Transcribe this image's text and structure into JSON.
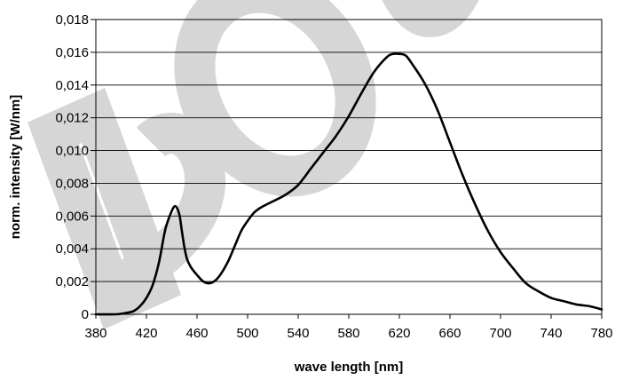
{
  "chart_data": {
    "type": "line",
    "title": "",
    "xlabel": "wave length [nm]",
    "ylabel": "norm. intensity [W/nm]",
    "xlim": [
      380,
      780
    ],
    "ylim": [
      0,
      0.018
    ],
    "x_ticks": [
      380,
      420,
      460,
      500,
      540,
      580,
      620,
      660,
      700,
      740,
      780
    ],
    "x_tick_labels": [
      "380",
      "420",
      "460",
      "500",
      "540",
      "580",
      "620",
      "660",
      "700",
      "740",
      "780"
    ],
    "y_ticks": [
      0,
      0.002,
      0.004,
      0.006,
      0.008,
      0.01,
      0.012,
      0.014,
      0.016,
      0.018
    ],
    "y_tick_labels": [
      "0",
      "0,002",
      "0,004",
      "0,006",
      "0,008",
      "0,010",
      "0,012",
      "0,014",
      "0,016",
      "0,018"
    ],
    "grid": "horizontal",
    "legend": "none",
    "line_color": "#000000",
    "watermark_color": "#d6d6d6",
    "watermark_text": "DOUBLE",
    "series": [
      {
        "x": [
          380,
          395,
          400,
          405,
          410,
          415,
          420,
          425,
          430,
          435,
          440,
          443,
          446,
          448,
          450,
          452,
          455,
          460,
          465,
          470,
          475,
          480,
          485,
          490,
          495,
          500,
          505,
          510,
          520,
          530,
          540,
          550,
          560,
          570,
          580,
          590,
          600,
          610,
          615,
          620,
          625,
          630,
          640,
          650,
          660,
          670,
          680,
          690,
          700,
          710,
          720,
          730,
          740,
          750,
          760,
          770,
          780
        ],
        "y": [
          0,
          0,
          3e-05,
          0.0001,
          0.0002,
          0.0005,
          0.001,
          0.0018,
          0.0032,
          0.0052,
          0.0063,
          0.0066,
          0.0061,
          0.0051,
          0.0041,
          0.0034,
          0.0029,
          0.0024,
          0.002,
          0.0019,
          0.0021,
          0.0026,
          0.0033,
          0.0042,
          0.0051,
          0.0057,
          0.0062,
          0.0065,
          0.0069,
          0.0073,
          0.0079,
          0.0089,
          0.0099,
          0.0109,
          0.0121,
          0.0135,
          0.0148,
          0.0157,
          0.0159,
          0.0159,
          0.0158,
          0.0153,
          0.0141,
          0.0125,
          0.0105,
          0.0085,
          0.0067,
          0.0051,
          0.0038,
          0.0028,
          0.0019,
          0.0014,
          0.001,
          0.0008,
          0.0006,
          0.0005,
          0.0003
        ]
      }
    ]
  }
}
